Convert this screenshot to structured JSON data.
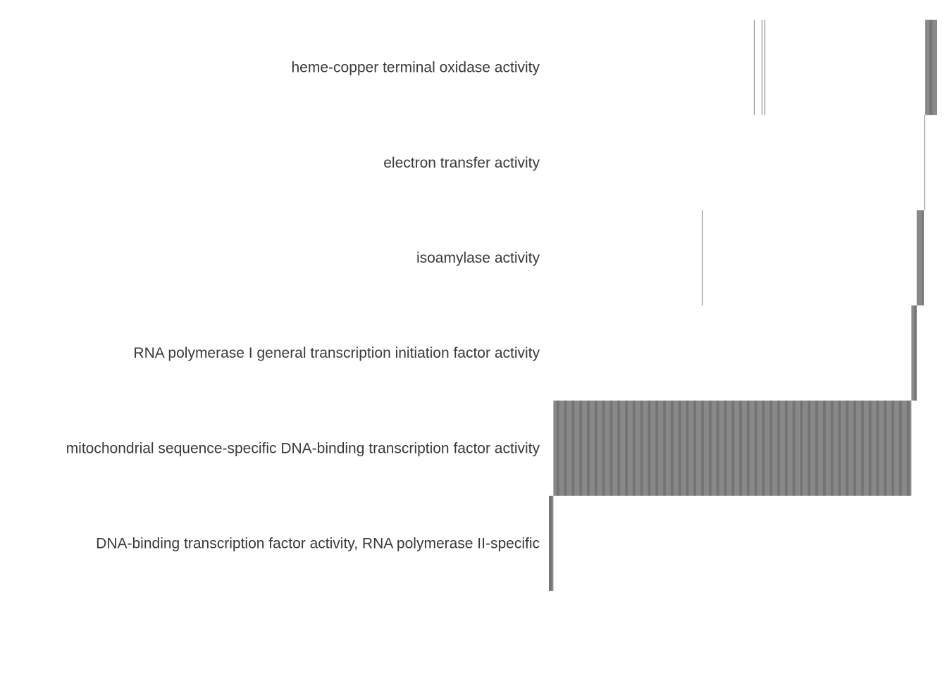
{
  "chart_data": {
    "type": "heatmap",
    "rows": [
      "heme-copper terminal oxidase activity",
      "electron transfer activity",
      "isoamylase activity",
      "RNA polymerase I general transcription initiation factor activity",
      "mitochondrial sequence-specific DNA-binding transcription factor activity",
      "DNA-binding transcription factor activity, RNA polymerase II-specific"
    ],
    "n_columns": 500,
    "column_labels": [],
    "members": [
      {
        "row": 0,
        "columns": [
          [
            264,
            264
          ],
          [
            274,
            274
          ],
          [
            278,
            278
          ],
          [
            485,
            499
          ]
        ]
      },
      {
        "row": 1,
        "columns": [
          [
            484,
            484
          ]
        ]
      },
      {
        "row": 2,
        "columns": [
          [
            197,
            197
          ],
          [
            474,
            482
          ]
        ]
      },
      {
        "row": 3,
        "columns": [
          [
            467,
            473
          ]
        ]
      },
      {
        "row": 4,
        "columns": [
          [
            6,
            466
          ]
        ]
      },
      {
        "row": 5,
        "columns": [
          [
            0,
            5
          ]
        ]
      }
    ],
    "color_present": "#3a3a3a",
    "color_absent": "#ffffff",
    "grid": false,
    "legend": "none"
  }
}
